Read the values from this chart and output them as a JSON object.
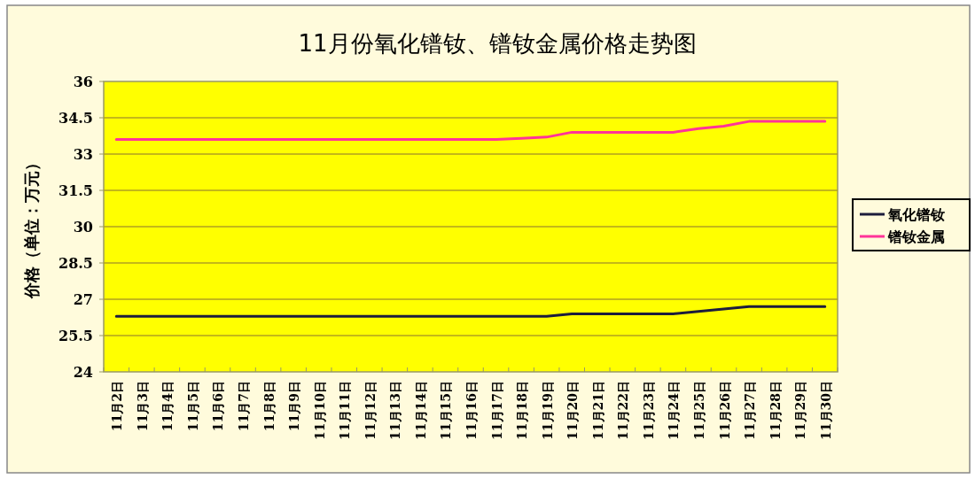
{
  "chart_data": {
    "type": "line",
    "title": "11月份氧化镨钕、镨钕金属价格走势图",
    "ylabel": "价格（单位：万元）",
    "categories": [
      "11月2日",
      "11月3日",
      "11月4日",
      "11月5日",
      "11月6日",
      "11月7日",
      "11月8日",
      "11月9日",
      "11月10日",
      "11月11日",
      "11月12日",
      "11月13日",
      "11月14日",
      "11月15日",
      "11月16日",
      "11月17日",
      "11月18日",
      "11月19日",
      "11月20日",
      "11月21日",
      "11月22日",
      "11月23日",
      "11月24日",
      "11月25日",
      "11月26日",
      "11月27日",
      "11月28日",
      "11月29日",
      "11月30日"
    ],
    "series": [
      {
        "name": "氧化镨钕",
        "color": "#1c1c3c",
        "values": [
          26.3,
          26.3,
          26.3,
          26.3,
          26.3,
          26.3,
          26.3,
          26.3,
          26.3,
          26.3,
          26.3,
          26.3,
          26.3,
          26.3,
          26.3,
          26.3,
          26.3,
          26.3,
          26.4,
          26.4,
          26.4,
          26.4,
          26.4,
          26.5,
          26.6,
          26.7,
          26.7,
          26.7,
          26.7
        ]
      },
      {
        "name": "镨钕金属",
        "color": "#ff3399",
        "values": [
          33.6,
          33.6,
          33.6,
          33.6,
          33.6,
          33.6,
          33.6,
          33.6,
          33.6,
          33.6,
          33.6,
          33.6,
          33.6,
          33.6,
          33.6,
          33.6,
          33.65,
          33.7,
          33.9,
          33.9,
          33.9,
          33.9,
          33.9,
          34.05,
          34.15,
          34.35,
          34.35,
          34.35,
          34.35
        ]
      }
    ],
    "ylim": [
      24,
      36
    ],
    "yticks": [
      24,
      25.5,
      27,
      28.5,
      30,
      31.5,
      33,
      34.5,
      36
    ],
    "grid": "y",
    "legend": "right",
    "marker": "none",
    "line_style": "solid"
  }
}
